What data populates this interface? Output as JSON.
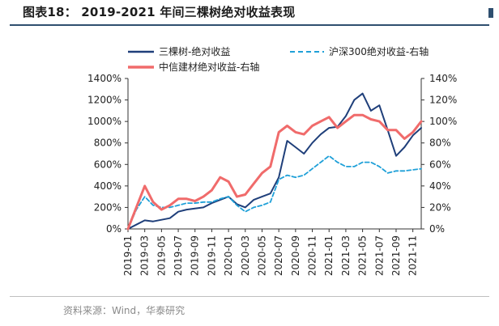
{
  "header": {
    "title": "图表18： 2019-2021 年间三棵树绝对收益表现"
  },
  "footer": {
    "source": "资料来源：Wind，华泰研究"
  },
  "colors": {
    "accent": "#2f4f6f"
  },
  "chart_data": {
    "type": "line",
    "title": "",
    "xlabel": "",
    "ylabel": "",
    "legend_position": "top",
    "grid": false,
    "y_left": {
      "ticks": [
        "0%",
        "200%",
        "400%",
        "600%",
        "800%",
        "1000%",
        "1200%",
        "1400%"
      ],
      "range": [
        0,
        1400
      ]
    },
    "y_right": {
      "ticks": [
        "0%",
        "20%",
        "40%",
        "60%",
        "80%",
        "100%",
        "120%",
        "140%"
      ],
      "range": [
        0,
        140
      ]
    },
    "x_ticks": [
      "2019-01",
      "2019-03",
      "2019-05",
      "2019-07",
      "2019-09",
      "2019-11",
      "2020-01",
      "2020-03",
      "2020-05",
      "2020-07",
      "2020-09",
      "2020-11",
      "2021-01",
      "2021-03",
      "2021-05",
      "2021-07",
      "2021-09",
      "2021-11"
    ],
    "series": [
      {
        "name": "三棵树-绝对收益",
        "axis": "left",
        "color": "#1f3f7a",
        "style": "solid",
        "x": [
          "2019-01",
          "2019-02",
          "2019-03",
          "2019-04",
          "2019-05",
          "2019-06",
          "2019-07",
          "2019-08",
          "2019-09",
          "2019-10",
          "2019-11",
          "2019-12",
          "2020-01",
          "2020-02",
          "2020-03",
          "2020-04",
          "2020-05",
          "2020-06",
          "2020-07",
          "2020-08",
          "2020-09",
          "2020-10",
          "2020-11",
          "2020-12",
          "2021-01",
          "2021-02",
          "2021-03",
          "2021-04",
          "2021-05",
          "2021-06",
          "2021-07",
          "2021-08",
          "2021-09",
          "2021-10",
          "2021-11",
          "2021-12"
        ],
        "values": [
          0,
          40,
          80,
          70,
          85,
          100,
          160,
          180,
          190,
          200,
          240,
          270,
          300,
          230,
          200,
          270,
          300,
          330,
          480,
          820,
          760,
          700,
          800,
          880,
          940,
          950,
          1050,
          1200,
          1260,
          1100,
          1150,
          920,
          680,
          760,
          870,
          940
        ]
      },
      {
        "name": "沪深300绝对收益-右轴",
        "axis": "right",
        "color": "#1fa0d8",
        "style": "dashed",
        "x": [
          "2019-01",
          "2019-02",
          "2019-03",
          "2019-04",
          "2019-05",
          "2019-06",
          "2019-07",
          "2019-08",
          "2019-09",
          "2019-10",
          "2019-11",
          "2019-12",
          "2020-01",
          "2020-02",
          "2020-03",
          "2020-04",
          "2020-05",
          "2020-06",
          "2020-07",
          "2020-08",
          "2020-09",
          "2020-10",
          "2020-11",
          "2020-12",
          "2021-01",
          "2021-02",
          "2021-03",
          "2021-04",
          "2021-05",
          "2021-06",
          "2021-07",
          "2021-08",
          "2021-09",
          "2021-10",
          "2021-11",
          "2021-12"
        ],
        "values": [
          0,
          18,
          30,
          22,
          20,
          20,
          22,
          24,
          24,
          25,
          25,
          28,
          30,
          22,
          16,
          20,
          22,
          25,
          46,
          50,
          48,
          50,
          56,
          62,
          68,
          62,
          58,
          58,
          62,
          62,
          58,
          52,
          54,
          54,
          55,
          56
        ]
      },
      {
        "name": "中信建材绝对收益-右轴",
        "axis": "right",
        "color": "#f06b6b",
        "style": "solid",
        "x": [
          "2019-01",
          "2019-02",
          "2019-03",
          "2019-04",
          "2019-05",
          "2019-06",
          "2019-07",
          "2019-08",
          "2019-09",
          "2019-10",
          "2019-11",
          "2019-12",
          "2020-01",
          "2020-02",
          "2020-03",
          "2020-04",
          "2020-05",
          "2020-06",
          "2020-07",
          "2020-08",
          "2020-09",
          "2020-10",
          "2020-11",
          "2020-12",
          "2021-01",
          "2021-02",
          "2021-03",
          "2021-04",
          "2021-05",
          "2021-06",
          "2021-07",
          "2021-08",
          "2021-09",
          "2021-10",
          "2021-11",
          "2021-12"
        ],
        "values": [
          0,
          20,
          40,
          25,
          18,
          22,
          28,
          28,
          26,
          30,
          36,
          48,
          44,
          30,
          32,
          42,
          52,
          58,
          90,
          96,
          90,
          88,
          96,
          100,
          104,
          94,
          100,
          106,
          106,
          102,
          100,
          92,
          92,
          84,
          90,
          100
        ]
      }
    ]
  }
}
